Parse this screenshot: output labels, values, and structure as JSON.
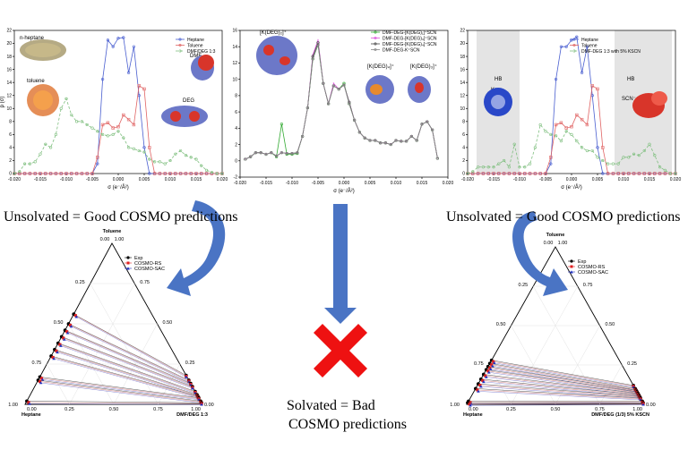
{
  "captions": {
    "left": "Unsolvated = Good COSMO predictions",
    "right": "Unsolvated = Good COSMO predictions",
    "center_line1": "Solvated  = Bad",
    "center_line2": "COSMO predictions"
  },
  "icons": {
    "arrow_left": "curved-arrow-icon",
    "arrow_center": "down-arrow-icon",
    "arrow_right": "curved-arrow-icon",
    "cross": "red-x-icon"
  },
  "colors": {
    "heptane": "#4a5fd0",
    "toluene": "#e06464",
    "dmf": "#7fbf7f",
    "arrow": "#4a74c4",
    "cross": "#ee1111",
    "exp": "#000000",
    "rs": "#e02020",
    "sac": "#2030c0"
  },
  "chart_data": [
    {
      "type": "line",
      "xlabel": "σ (e⁻/Å²)",
      "ylabel": "p (σ)",
      "xlim": [
        -0.02,
        0.02
      ],
      "ylim": [
        0,
        22
      ],
      "xticks": [
        "-0.020",
        "-0.015",
        "-0.010",
        "-0.005",
        "0.000",
        "0.005",
        "0.010",
        "0.015",
        "0.020"
      ],
      "yticks": [
        "0",
        "2",
        "4",
        "6",
        "8",
        "10",
        "12",
        "14",
        "16",
        "18",
        "20",
        "22"
      ],
      "legend_position": "top-right",
      "annotations": [
        "n-heptane",
        "toluene",
        "DMF",
        "DEG"
      ],
      "x": [
        -0.02,
        -0.019,
        -0.018,
        -0.017,
        -0.016,
        -0.015,
        -0.014,
        -0.013,
        -0.012,
        -0.011,
        -0.01,
        -0.009,
        -0.008,
        -0.007,
        -0.006,
        -0.005,
        -0.004,
        -0.003,
        -0.002,
        -0.001,
        0,
        0.001,
        0.002,
        0.003,
        0.004,
        0.005,
        0.006,
        0.007,
        0.008,
        0.009,
        0.01,
        0.011,
        0.012,
        0.013,
        0.014,
        0.015,
        0.016,
        0.017,
        0.018,
        0.019,
        0.02
      ],
      "series": [
        {
          "name": "Heptane",
          "values": [
            0,
            0,
            0,
            0,
            0,
            0,
            0,
            0,
            0,
            0,
            0,
            0,
            0,
            0,
            0,
            0,
            1.5,
            14.5,
            20.5,
            19.5,
            20.8,
            20.9,
            15.5,
            19.5,
            12,
            4,
            0,
            0,
            0,
            0,
            0,
            0,
            0,
            0,
            0,
            0,
            0,
            0,
            0,
            0,
            0
          ]
        },
        {
          "name": "Toluene",
          "values": [
            0,
            0,
            0,
            0,
            0,
            0,
            0,
            0,
            0,
            0,
            0,
            0,
            0,
            0,
            0,
            0,
            2.5,
            7.5,
            7.8,
            7,
            7.2,
            9,
            8.3,
            7.5,
            13.5,
            13,
            4,
            0,
            0,
            0,
            0,
            0,
            0,
            0,
            0,
            0,
            0,
            0,
            0,
            0,
            0
          ]
        },
        {
          "name": "DMF/DEG 1:3",
          "values": [
            0,
            0.3,
            1.5,
            1.5,
            1.8,
            3,
            4.5,
            4,
            6,
            10,
            11.5,
            9,
            8,
            8,
            7.5,
            7,
            6.5,
            6,
            5.8,
            6,
            6.5,
            5.5,
            4,
            3.8,
            3.5,
            3.3,
            2.2,
            1.8,
            1.8,
            1.5,
            2,
            3,
            3.5,
            2.8,
            2.5,
            2.2,
            1.2,
            0.5,
            0.2,
            0,
            0
          ]
        }
      ]
    },
    {
      "type": "line",
      "xlabel": "σ (e⁻/Å²)",
      "ylabel": "",
      "xlim": [
        -0.02,
        0.02
      ],
      "ylim": [
        -2,
        16
      ],
      "xticks": [
        "-0.020",
        "-0.015",
        "-0.010",
        "-0.005",
        "0.000",
        "0.005",
        "0.010",
        "0.015",
        "0.020"
      ],
      "yticks": [
        "-2",
        "0",
        "2",
        "4",
        "6",
        "8",
        "10",
        "12",
        "14",
        "16"
      ],
      "legend_position": "top-right",
      "annotations": [
        "[K(DEG)₂]⁺",
        "[K(DEG)₄]⁺",
        "[K(DEG)₃]⁺"
      ],
      "x": [
        -0.019,
        -0.018,
        -0.017,
        -0.016,
        -0.015,
        -0.014,
        -0.013,
        -0.012,
        -0.011,
        -0.01,
        -0.009,
        -0.008,
        -0.007,
        -0.006,
        -0.005,
        -0.004,
        -0.003,
        -0.002,
        -0.001,
        0,
        0.001,
        0.002,
        0.003,
        0.004,
        0.005,
        0.006,
        0.007,
        0.008,
        0.009,
        0.01,
        0.011,
        0.012,
        0.013,
        0.014,
        0.015,
        0.016,
        0.017,
        0.018
      ],
      "series": [
        {
          "name": "DMF-DEG-[K(DEG)₁]⁺SCN",
          "values": [
            0.2,
            0.5,
            1,
            1,
            0.8,
            1,
            0.5,
            4.5,
            0.8,
            0.8,
            0.9,
            3,
            6.5,
            12.5,
            14.2,
            9.5,
            7,
            9.2,
            8.8,
            9.5,
            7,
            5,
            3.5,
            2.8,
            2.5,
            2.5,
            2.2,
            2.2,
            2,
            2.5,
            2.4,
            2.4,
            3,
            2.5,
            4.5,
            4.8,
            3.8,
            0.3
          ]
        },
        {
          "name": "DMF-DEG-[K(DEG)₃]⁺SCN",
          "values": [
            0.2,
            0.5,
            1,
            1,
            0.8,
            1,
            0.6,
            1,
            0.9,
            0.9,
            1,
            3,
            6.5,
            13,
            14.8,
            9.5,
            7,
            9.5,
            8.8,
            9.3,
            7.2,
            5,
            3.5,
            2.8,
            2.5,
            2.5,
            2.2,
            2.2,
            2,
            2.5,
            2.4,
            2.4,
            3,
            2.5,
            4.5,
            4.8,
            3.8,
            0.3
          ]
        },
        {
          "name": "DMF-DEG-[K(DEG)₄]⁺SCN",
          "values": [
            0.2,
            0.5,
            1,
            1,
            0.8,
            1,
            0.6,
            1,
            0.9,
            0.9,
            1,
            3,
            6.5,
            12.8,
            14.5,
            9.5,
            7,
            9.2,
            8.8,
            9.3,
            7.2,
            5,
            3.5,
            2.8,
            2.5,
            2.5,
            2.2,
            2.2,
            2,
            2.5,
            2.4,
            2.4,
            3,
            2.5,
            4.5,
            4.8,
            3.8,
            0.3
          ]
        },
        {
          "name": "DMF-DEG-K⁺SCN",
          "values": [
            0.2,
            0.5,
            1,
            1,
            0.8,
            1,
            0.6,
            1,
            0.9,
            0.9,
            1,
            3,
            6.5,
            12.5,
            14.3,
            9.5,
            7,
            9.2,
            8.8,
            9.3,
            7,
            5,
            3.5,
            2.8,
            2.5,
            2.5,
            2.2,
            2.2,
            2,
            2.5,
            2.4,
            2.4,
            3,
            2.5,
            4.5,
            4.8,
            3.8,
            0.3
          ]
        }
      ]
    },
    {
      "type": "line",
      "xlabel": "σ (e⁻/Å²)",
      "ylabel": "",
      "xlim": [
        -0.02,
        0.02
      ],
      "ylim": [
        0,
        22
      ],
      "xticks": [
        "-0.020",
        "-0.015",
        "-0.010",
        "-0.005",
        "0.000",
        "0.005",
        "0.010",
        "0.015",
        "0.020"
      ],
      "yticks": [
        "0",
        "2",
        "4",
        "6",
        "8",
        "10",
        "12",
        "14",
        "16",
        "18",
        "20",
        "22"
      ],
      "legend_position": "top-right",
      "annotations": [
        "HB",
        "K⁺",
        "HB",
        "SCN⁻"
      ],
      "x": [
        -0.02,
        -0.019,
        -0.018,
        -0.017,
        -0.016,
        -0.015,
        -0.014,
        -0.013,
        -0.012,
        -0.011,
        -0.01,
        -0.009,
        -0.008,
        -0.007,
        -0.006,
        -0.005,
        -0.004,
        -0.003,
        -0.002,
        -0.001,
        0,
        0.001,
        0.002,
        0.003,
        0.004,
        0.005,
        0.006,
        0.007,
        0.008,
        0.009,
        0.01,
        0.011,
        0.012,
        0.013,
        0.014,
        0.015,
        0.016,
        0.017,
        0.018,
        0.019,
        0.02
      ],
      "series": [
        {
          "name": "Heptane",
          "values": [
            0,
            0,
            0,
            0,
            0,
            0,
            0,
            0,
            0,
            0,
            0,
            0,
            0,
            0,
            0,
            0,
            1.5,
            14.5,
            19.5,
            19.5,
            20.5,
            21,
            15.5,
            19.5,
            12,
            4,
            0,
            0,
            0,
            0,
            0,
            0,
            0,
            0,
            0,
            0,
            0,
            0,
            0,
            0,
            0
          ]
        },
        {
          "name": "Toluene",
          "values": [
            0,
            0,
            0,
            0,
            0,
            0,
            0,
            0,
            0,
            0,
            0,
            0,
            0,
            0,
            0,
            0,
            2.5,
            7.5,
            7.8,
            7,
            7.2,
            9,
            8.3,
            7.5,
            13.5,
            13,
            4,
            0,
            0,
            0,
            0,
            0,
            0,
            0,
            0,
            0,
            0,
            0,
            0,
            0,
            0
          ]
        },
        {
          "name": "DMF-DEG 1:3 with 5% KSCN",
          "values": [
            0,
            0.3,
            1,
            1,
            1,
            1,
            1.5,
            2,
            1,
            4.5,
            1,
            1,
            1.5,
            4,
            7.5,
            6.5,
            6,
            5.8,
            5,
            6.5,
            6,
            5,
            4,
            3.5,
            3.5,
            2.5,
            2,
            1.5,
            1.5,
            1.5,
            2.5,
            2.5,
            3,
            2.8,
            3.5,
            4.5,
            2.8,
            1,
            0.5,
            0,
            0
          ]
        }
      ]
    },
    {
      "type": "scatter",
      "title": "",
      "axis_labels": [
        "Toluene",
        "Heptane",
        "DMF/DEG 1:3"
      ],
      "ticks": [
        "0.00",
        "1.00",
        "0.25",
        "0.75",
        "0.50",
        "0.50",
        "0.75",
        "0.25",
        "1.00",
        "0.00",
        "0.25",
        "0.50",
        "0.75",
        "0.00",
        "1.00"
      ],
      "legend": [
        "Exp",
        "COSMO-RS",
        "COSMO-SAC"
      ],
      "legend_position": "top-right"
    },
    {
      "type": "scatter",
      "title": "",
      "axis_labels": [
        "Toluene",
        "Heptane",
        "DMF/DEG (1/3) 5% KSCN"
      ],
      "ticks": [
        "0.00",
        "1.00",
        "0.25",
        "0.75",
        "0.50",
        "0.50",
        "0.75",
        "0.25",
        "1.00",
        "0.00",
        "0.25",
        "0.50",
        "0.75",
        "0.00",
        "1.00"
      ],
      "legend": [
        "Exp",
        "COSMO-RS",
        "COSMO-SAC"
      ],
      "legend_position": "top-right"
    }
  ]
}
